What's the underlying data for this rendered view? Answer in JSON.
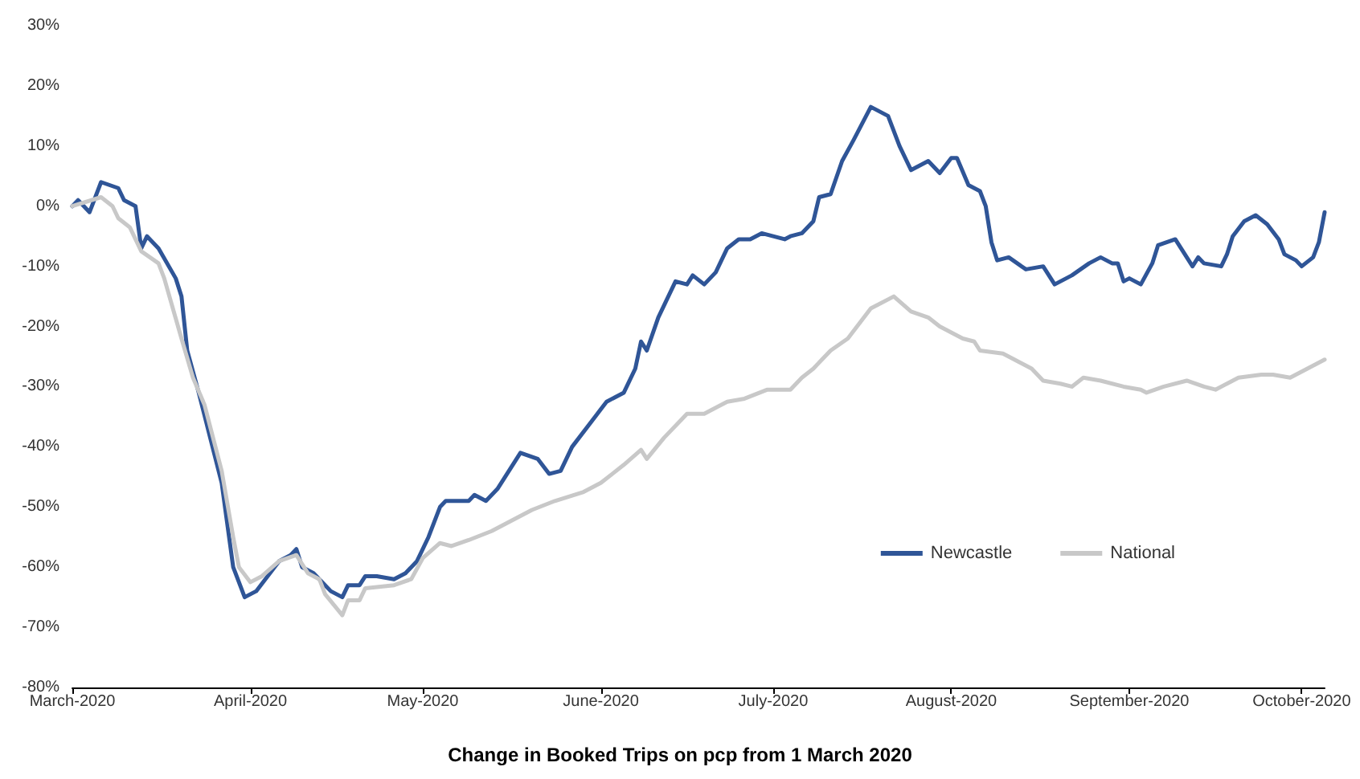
{
  "chart_data": {
    "type": "line",
    "title": "Change in Booked Trips on pcp from 1 March 2020",
    "xlim": [
      "2020-03-01",
      "2020-10-05"
    ],
    "xticks": [
      {
        "value": "2020-03-01",
        "label": "March-2020"
      },
      {
        "value": "2020-04-01",
        "label": "April-2020"
      },
      {
        "value": "2020-05-01",
        "label": "May-2020"
      },
      {
        "value": "2020-06-01",
        "label": "June-2020"
      },
      {
        "value": "2020-07-01",
        "label": "July-2020"
      },
      {
        "value": "2020-08-01",
        "label": "August-2020"
      },
      {
        "value": "2020-09-01",
        "label": "September-2020"
      },
      {
        "value": "2020-10-01",
        "label": "October-2020"
      }
    ],
    "ylim": [
      -80,
      30
    ],
    "yticks": [
      {
        "value": -80,
        "label": "-80%"
      },
      {
        "value": -70,
        "label": "-70%"
      },
      {
        "value": -60,
        "label": "-60%"
      },
      {
        "value": -50,
        "label": "-50%"
      },
      {
        "value": -40,
        "label": "-40%"
      },
      {
        "value": -30,
        "label": "-30%"
      },
      {
        "value": -20,
        "label": "-20%"
      },
      {
        "value": -10,
        "label": "-10%"
      },
      {
        "value": 0,
        "label": "0%"
      },
      {
        "value": 10,
        "label": "10%"
      },
      {
        "value": 20,
        "label": "20%"
      },
      {
        "value": 30,
        "label": "30%"
      }
    ],
    "grid": false,
    "legend": "bottom right",
    "marker": "none",
    "line_style": "solid",
    "series": [
      {
        "name": "Newcastle",
        "color": "#2f5597",
        "x": [
          "2020-03-01",
          "2020-03-02",
          "2020-03-04",
          "2020-03-06",
          "2020-03-09",
          "2020-03-10",
          "2020-03-12",
          "2020-03-13",
          "2020-03-14",
          "2020-03-16",
          "2020-03-19",
          "2020-03-20",
          "2020-03-21",
          "2020-03-23",
          "2020-03-27",
          "2020-03-29",
          "2020-03-31",
          "2020-04-02",
          "2020-04-06",
          "2020-04-08",
          "2020-04-09",
          "2020-04-10",
          "2020-04-12",
          "2020-04-14",
          "2020-04-15",
          "2020-04-17",
          "2020-04-18",
          "2020-04-20",
          "2020-04-21",
          "2020-04-23",
          "2020-04-26",
          "2020-04-28",
          "2020-04-30",
          "2020-05-02",
          "2020-05-04",
          "2020-05-05",
          "2020-05-09",
          "2020-05-10",
          "2020-05-12",
          "2020-05-14",
          "2020-05-18",
          "2020-05-21",
          "2020-05-23",
          "2020-05-25",
          "2020-05-27",
          "2020-05-31",
          "2020-06-02",
          "2020-06-05",
          "2020-06-07",
          "2020-06-08",
          "2020-06-09",
          "2020-06-11",
          "2020-06-14",
          "2020-06-16",
          "2020-06-17",
          "2020-06-19",
          "2020-06-21",
          "2020-06-23",
          "2020-06-25",
          "2020-06-27",
          "2020-06-29",
          "2020-07-01",
          "2020-07-03",
          "2020-07-04",
          "2020-07-06",
          "2020-07-08",
          "2020-07-09",
          "2020-07-11",
          "2020-07-13",
          "2020-07-15",
          "2020-07-18",
          "2020-07-19",
          "2020-07-21",
          "2020-07-23",
          "2020-07-25",
          "2020-07-28",
          "2020-07-30",
          "2020-08-01",
          "2020-08-02",
          "2020-08-04",
          "2020-08-06",
          "2020-08-07",
          "2020-08-08",
          "2020-08-09",
          "2020-08-11",
          "2020-08-14",
          "2020-08-17",
          "2020-08-19",
          "2020-08-22",
          "2020-08-25",
          "2020-08-27",
          "2020-08-29",
          "2020-08-30",
          "2020-08-31",
          "2020-09-01",
          "2020-09-03",
          "2020-09-05",
          "2020-09-06",
          "2020-09-09",
          "2020-09-10",
          "2020-09-12",
          "2020-09-13",
          "2020-09-14",
          "2020-09-17",
          "2020-09-18",
          "2020-09-19",
          "2020-09-21",
          "2020-09-23",
          "2020-09-25",
          "2020-09-27",
          "2020-09-28",
          "2020-09-30",
          "2020-10-01",
          "2020-10-03",
          "2020-10-04",
          "2020-10-05"
        ],
        "values": [
          0,
          1,
          -1,
          4,
          3,
          1,
          0,
          -7,
          -5,
          -7,
          -12,
          -15,
          -24,
          -31,
          -46,
          -60,
          -65,
          -64,
          -59,
          -58,
          -57,
          -60,
          -61,
          -63,
          -64,
          -65,
          -63,
          -63,
          -61.5,
          -61.5,
          -62,
          -61,
          -59,
          -55,
          -50,
          -49,
          -49,
          -48,
          -49,
          -47,
          -41,
          -42,
          -44.5,
          -44,
          -40,
          -35,
          -32.5,
          -31,
          -27,
          -22.5,
          -24,
          -18.5,
          -12.5,
          -13,
          -11.5,
          -13,
          -11,
          -7,
          -5.5,
          -5.5,
          -4.5,
          -5,
          -5.5,
          -5,
          -4.5,
          -2.5,
          1.5,
          2,
          7.5,
          11,
          16.5,
          16,
          15,
          10,
          6,
          7.5,
          5.5,
          8,
          8,
          3.5,
          2.5,
          0,
          -6,
          -9,
          -8.5,
          -10.5,
          -10,
          -13,
          -11.5,
          -9.5,
          -8.5,
          -9.5,
          -9.5,
          -12.5,
          -12,
          -13,
          -9.5,
          -6.5,
          -5.5,
          -7,
          -10,
          -8.5,
          -9.5,
          -10,
          -8,
          -5,
          -2.5,
          -1.5,
          -3,
          -5.5,
          -8,
          -9,
          -10,
          -8.5,
          -6,
          -1
        ]
      },
      {
        "name": "National",
        "color": "#c8c8c8",
        "x": [
          "2020-03-01",
          "2020-03-06",
          "2020-03-08",
          "2020-03-09",
          "2020-03-11",
          "2020-03-13",
          "2020-03-16",
          "2020-03-17",
          "2020-03-20",
          "2020-03-22",
          "2020-03-24",
          "2020-03-27",
          "2020-03-29",
          "2020-03-30",
          "2020-04-01",
          "2020-04-03",
          "2020-04-06",
          "2020-04-09",
          "2020-04-11",
          "2020-04-13",
          "2020-04-14",
          "2020-04-17",
          "2020-04-18",
          "2020-04-20",
          "2020-04-21",
          "2020-04-26",
          "2020-04-29",
          "2020-05-01",
          "2020-05-04",
          "2020-05-06",
          "2020-05-09",
          "2020-05-13",
          "2020-05-17",
          "2020-05-20",
          "2020-05-24",
          "2020-05-29",
          "2020-06-01",
          "2020-06-05",
          "2020-06-08",
          "2020-06-09",
          "2020-06-12",
          "2020-06-15",
          "2020-06-16",
          "2020-06-19",
          "2020-06-23",
          "2020-06-26",
          "2020-06-30",
          "2020-07-04",
          "2020-07-06",
          "2020-07-08",
          "2020-07-11",
          "2020-07-14",
          "2020-07-18",
          "2020-07-22",
          "2020-07-25",
          "2020-07-28",
          "2020-07-30",
          "2020-08-03",
          "2020-08-05",
          "2020-08-06",
          "2020-08-10",
          "2020-08-13",
          "2020-08-15",
          "2020-08-17",
          "2020-08-20",
          "2020-08-22",
          "2020-08-24",
          "2020-08-27",
          "2020-08-31",
          "2020-09-03",
          "2020-09-04",
          "2020-09-07",
          "2020-09-11",
          "2020-09-14",
          "2020-09-16",
          "2020-09-18",
          "2020-09-20",
          "2020-09-24",
          "2020-09-26",
          "2020-09-29",
          "2020-10-02",
          "2020-10-05"
        ],
        "values": [
          0,
          1.5,
          0,
          -2,
          -3.5,
          -7.5,
          -9.5,
          -12,
          -22,
          -28.5,
          -33,
          -44,
          -55,
          -60,
          -62.5,
          -61.5,
          -59,
          -58,
          -61,
          -62,
          -64.5,
          -68,
          -65.5,
          -65.5,
          -63.5,
          -63,
          -62,
          -58.5,
          -56,
          -56.5,
          -55.5,
          -54,
          -52,
          -50.5,
          -49,
          -47.5,
          -46,
          -43,
          -40.5,
          -42,
          -38.5,
          -35.5,
          -34.5,
          -34.5,
          -32.5,
          -32,
          -30.5,
          -30.5,
          -28.5,
          -27,
          -24,
          -22,
          -17,
          -15,
          -17.5,
          -18.5,
          -20,
          -22,
          -22.5,
          -24,
          -24.5,
          -26,
          -27,
          -29,
          -29.5,
          -30,
          -28.5,
          -29,
          -30,
          -30.5,
          -31,
          -30,
          -29,
          -30,
          -30.5,
          -29.5,
          -28.5,
          -28,
          -28,
          -28.5,
          -27,
          -25.5
        ]
      }
    ]
  }
}
